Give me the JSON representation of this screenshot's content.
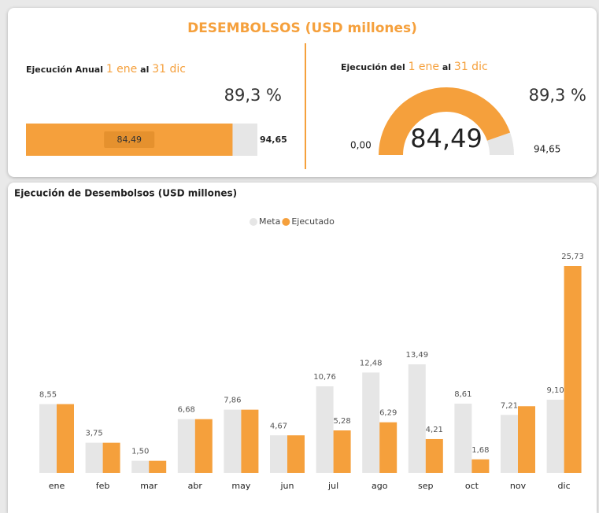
{
  "header": {
    "title": "DESEMBOLSOS (USD millones)"
  },
  "annual": {
    "label": "Ejecución Anual",
    "from": "1 ene",
    "al": "al",
    "to": "31 dic",
    "percent": 89.3,
    "percent_label": "89,3 %",
    "value": 84.49,
    "value_label": "84,49",
    "target": 94.65,
    "target_label": "94,65"
  },
  "gauge": {
    "label": "Ejecución del",
    "from": "1 ene",
    "al": "al",
    "to": "31 dic",
    "percent": 89.3,
    "percent_label": "89,3 %",
    "min": 0,
    "min_label": "0,00",
    "value": 84.49,
    "value_label": "84,49",
    "max": 94.65,
    "max_label": "94,65"
  },
  "chart_data": {
    "type": "bar",
    "title": "Ejecución de Desembolsos (USD millones)",
    "categories": [
      "ene",
      "feb",
      "mar",
      "abr",
      "may",
      "jun",
      "jul",
      "ago",
      "sep",
      "oct",
      "nov",
      "dic"
    ],
    "series": [
      {
        "name": "Meta",
        "color": "#e6e6e6",
        "values": [
          8.55,
          3.75,
          1.5,
          6.68,
          7.86,
          4.67,
          10.76,
          12.48,
          13.49,
          8.61,
          7.21,
          9.1
        ],
        "value_labels": [
          "8,55",
          "3,75",
          "1,50",
          "6,68",
          "7,86",
          "4,67",
          "10,76",
          "12,48",
          "13,49",
          "8,61",
          "7,21",
          "9,10"
        ]
      },
      {
        "name": "Ejecutado",
        "color": "#f5a03c",
        "values": [
          8.55,
          3.75,
          1.5,
          6.68,
          7.86,
          4.67,
          5.28,
          6.29,
          4.21,
          1.68,
          8.29,
          25.73
        ],
        "value_labels": [
          null,
          null,
          null,
          null,
          null,
          null,
          "5,28",
          "6,29",
          "4,21",
          "1,68",
          null,
          "25,73"
        ]
      }
    ]
  }
}
